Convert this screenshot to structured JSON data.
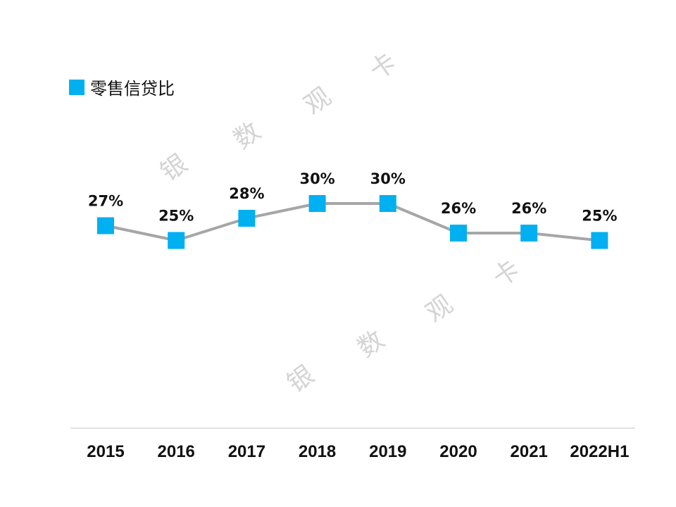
{
  "legend": {
    "label": "零售信贷比",
    "color": "#00b0f0"
  },
  "watermark": {
    "chars": [
      "银",
      "数",
      "观",
      "卡"
    ]
  },
  "colors": {
    "line": "#a6a6a6",
    "marker": "#00b0f0",
    "axis": "#d9d9d9",
    "watermark": "#d4d4d4"
  },
  "chart_data": {
    "type": "line",
    "categories": [
      "2015",
      "2016",
      "2017",
      "2018",
      "2019",
      "2020",
      "2021",
      "2022H1"
    ],
    "series": [
      {
        "name": "零售信贷比",
        "values": [
          27,
          25,
          28,
          30,
          30,
          26,
          26,
          25
        ],
        "labels": [
          "27%",
          "25%",
          "28%",
          "30%",
          "30%",
          "26%",
          "26%",
          "25%"
        ]
      }
    ],
    "title": "",
    "xlabel": "",
    "ylabel": "",
    "ylim": [
      0,
      35
    ],
    "grid": false,
    "legend_position": "top-left",
    "y_axis_visible": false
  }
}
